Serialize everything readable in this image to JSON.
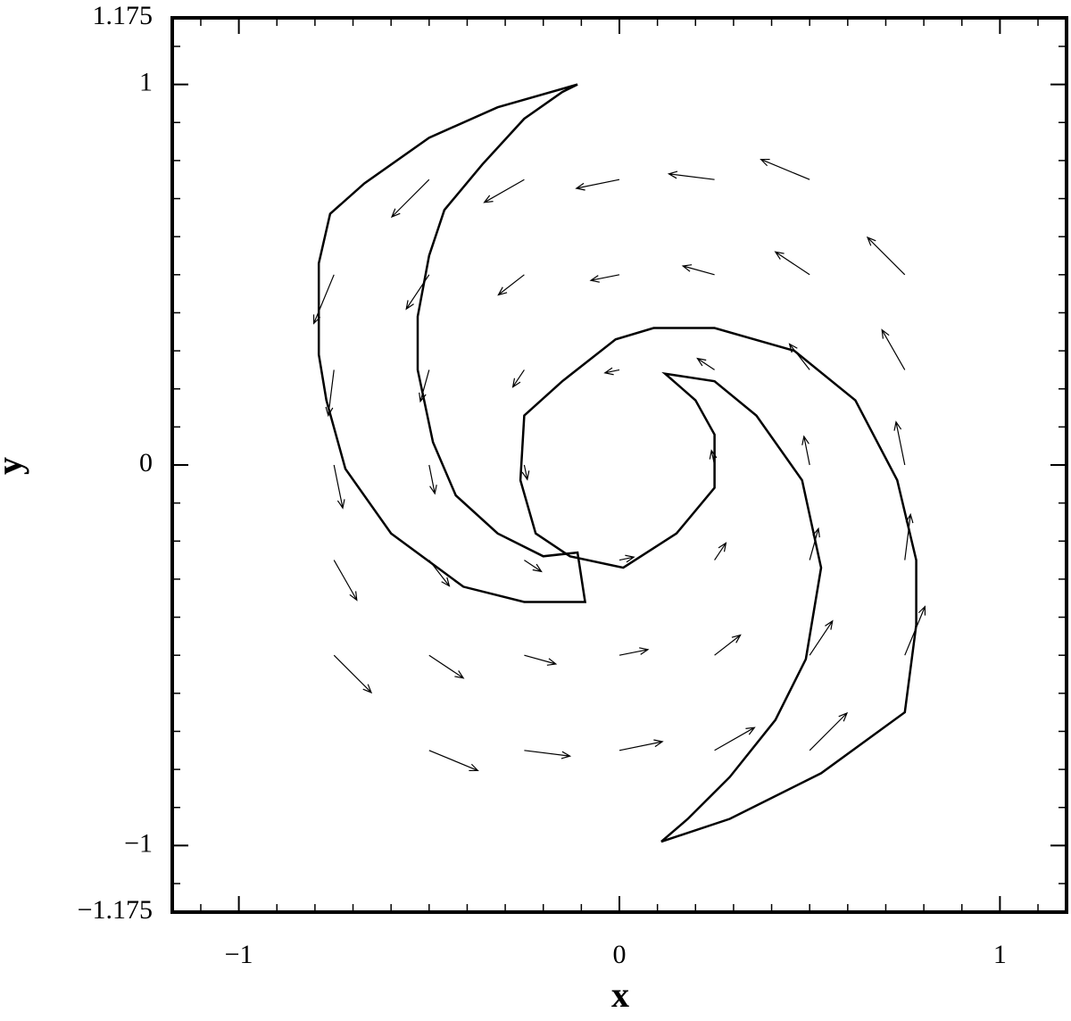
{
  "chart_data": {
    "type": "quiver",
    "xlabel": "x",
    "ylabel": "y",
    "xlim": [
      -1.175,
      1.175
    ],
    "ylim": [
      -1.175,
      1.175
    ],
    "xticks": [
      {
        "value": -1,
        "label": "−1"
      },
      0,
      1
    ],
    "yticks": [
      {
        "value": -1.175,
        "label": "−1.175"
      },
      {
        "value": -1,
        "label": "−1"
      },
      0,
      1,
      1.175
    ],
    "xminorticks": [
      -1.1,
      -0.9,
      -0.8,
      -0.7,
      -0.6,
      -0.5,
      -0.4,
      -0.3,
      -0.2,
      -0.1,
      0.1,
      0.2,
      0.3,
      0.4,
      0.5,
      0.6,
      0.7,
      0.8,
      0.9,
      1.1
    ],
    "yminorticks": [
      -1.1,
      -0.9,
      -0.8,
      -0.7,
      -0.6,
      -0.5,
      -0.4,
      -0.3,
      -0.2,
      -0.1,
      0.1,
      0.2,
      0.3,
      0.4,
      0.5,
      0.6,
      0.7,
      0.8,
      0.9,
      1.1
    ],
    "color": "#000000",
    "x": [
      -0.5,
      -0.25,
      0,
      0.25,
      0.5,
      -0.75,
      -0.5,
      -0.25,
      0,
      0.25,
      0.5,
      0.75,
      -0.75,
      -0.5,
      -0.25,
      0,
      0.25,
      0.5,
      0.75,
      -0.75,
      -0.5,
      -0.25,
      0.25,
      0.5,
      0.75,
      -0.75,
      -0.5,
      -0.25,
      0,
      0.25,
      0.5,
      0.75,
      -0.75,
      -0.5,
      -0.25,
      0,
      0.25,
      0.5,
      0.75,
      -0.5,
      -0.25,
      0,
      0.25,
      0.5
    ],
    "y": [
      0.75,
      0.75,
      0.75,
      0.75,
      0.75,
      0.5,
      0.5,
      0.5,
      0.5,
      0.5,
      0.5,
      0.5,
      0.25,
      0.25,
      0.25,
      0.25,
      0.25,
      0.25,
      0.25,
      0,
      0,
      0,
      0,
      0,
      0,
      -0.25,
      -0.25,
      -0.25,
      -0.25,
      -0.25,
      -0.25,
      -0.25,
      -0.5,
      -0.5,
      -0.5,
      -0.5,
      -0.5,
      -0.5,
      -0.5,
      -0.75,
      -0.75,
      -0.75,
      -0.75,
      -0.75
    ],
    "u": [
      -0.098,
      -0.105,
      -0.113,
      -0.12,
      -0.128,
      -0.053,
      -0.06,
      -0.068,
      -0.075,
      -0.083,
      -0.09,
      -0.098,
      -0.015,
      -0.023,
      -0.03,
      -0.038,
      -0.045,
      -0.053,
      -0.06,
      0.023,
      0.015,
      0.008,
      -0.008,
      -0.015,
      -0.023,
      0.06,
      0.053,
      0.045,
      0.038,
      0.03,
      0.023,
      0.015,
      0.098,
      0.09,
      0.083,
      0.075,
      0.068,
      0.06,
      0.053,
      0.128,
      0.12,
      0.113,
      0.105,
      0.098
    ],
    "v": [
      -0.098,
      -0.06,
      -0.023,
      0.015,
      0.053,
      -0.128,
      -0.09,
      -0.053,
      -0.015,
      0.023,
      0.06,
      0.098,
      -0.12,
      -0.083,
      -0.045,
      -0.008,
      0.03,
      0.068,
      0.105,
      -0.113,
      -0.075,
      -0.038,
      0.038,
      0.075,
      0.113,
      -0.105,
      -0.068,
      -0.03,
      0.008,
      0.045,
      0.083,
      0.12,
      -0.098,
      -0.06,
      -0.023,
      0.015,
      0.053,
      0.09,
      0.128,
      -0.053,
      -0.015,
      0.023,
      0.06,
      0.098
    ],
    "contours": [
      {
        "x": [
          -0.11,
          -0.32,
          -0.5,
          -0.67,
          -0.76,
          -0.79,
          -0.79,
          -0.77,
          -0.72,
          -0.6,
          -0.41,
          -0.25,
          -0.09,
          -0.11,
          -0.2,
          -0.32,
          -0.43,
          -0.49,
          -0.53,
          -0.53,
          -0.5,
          -0.46,
          -0.36,
          -0.25,
          -0.15,
          -0.11
        ],
        "y": [
          1.0,
          0.94,
          0.86,
          0.74,
          0.66,
          0.53,
          0.29,
          0.17,
          -0.01,
          -0.18,
          -0.32,
          -0.36,
          -0.36,
          -0.23,
          -0.24,
          -0.18,
          -0.08,
          0.06,
          0.25,
          0.39,
          0.55,
          0.67,
          0.79,
          0.91,
          0.98,
          1.0
        ]
      },
      {
        "x": [
          0.11,
          0.29,
          0.53,
          0.75,
          0.78,
          0.78,
          0.73,
          0.62,
          0.46,
          0.25,
          0.09,
          -0.01,
          -0.15,
          -0.25,
          -0.26,
          -0.22,
          -0.13,
          0.01,
          0.15,
          0.25,
          0.25,
          0.2,
          0.12,
          0.25,
          0.36,
          0.48,
          0.53,
          0.49,
          0.41,
          0.29,
          0.18,
          0.11
        ],
        "y": [
          -0.99,
          -0.93,
          -0.81,
          -0.65,
          -0.42,
          -0.25,
          -0.04,
          0.17,
          0.3,
          0.36,
          0.36,
          0.33,
          0.22,
          0.13,
          -0.04,
          -0.18,
          -0.24,
          -0.27,
          -0.18,
          -0.06,
          0.08,
          0.17,
          0.24,
          0.22,
          0.13,
          -0.04,
          -0.27,
          -0.51,
          -0.67,
          -0.82,
          -0.93,
          -0.99
        ]
      }
    ]
  }
}
